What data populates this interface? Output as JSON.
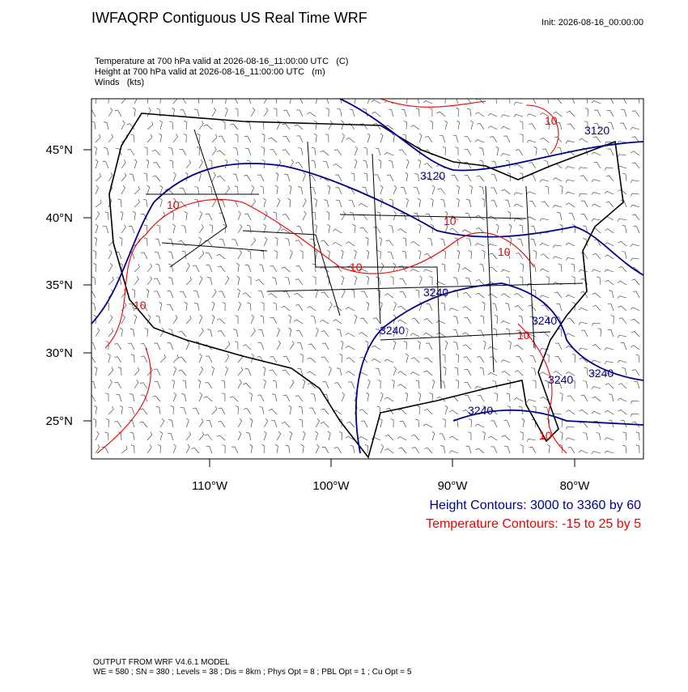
{
  "header": {
    "title": "IWFAQRP Contiguous US Real Time WRF",
    "init": "Init: 2026-08-16_00:00:00"
  },
  "fields": [
    "Temperature at 700 hPa valid at 2026-08-16_11:00:00 UTC   (C)",
    "Height at 700 hPa valid at 2026-08-16_11:00:00 UTC   (m)",
    "Winds   (kts)"
  ],
  "map": {
    "lat_labels": [
      "45°N",
      "40°N",
      "35°N",
      "30°N",
      "25°N"
    ],
    "lon_labels": [
      "110°W",
      "100°W",
      "90°W",
      "80°W"
    ],
    "height_labels": [
      "3120",
      "3120",
      "3240",
      "3240",
      "3240",
      "3240",
      "3240",
      "3240"
    ],
    "temp_labels": [
      "10",
      "10",
      "10",
      "10",
      "10",
      "10",
      "10",
      "10"
    ]
  },
  "legend": [
    "Height Contours: 3000 to 3360 by 60",
    "Temperature Contours: -15 to 25 by 5"
  ],
  "footer": [
    "OUTPUT FROM WRF V4.6.1 MODEL",
    "WE = 580 ; SN = 380 ; Levels = 38 ; Dis = 8km ; Phys Opt = 8 ; PBL Opt = 1 ; Cu Opt = 5"
  ]
}
